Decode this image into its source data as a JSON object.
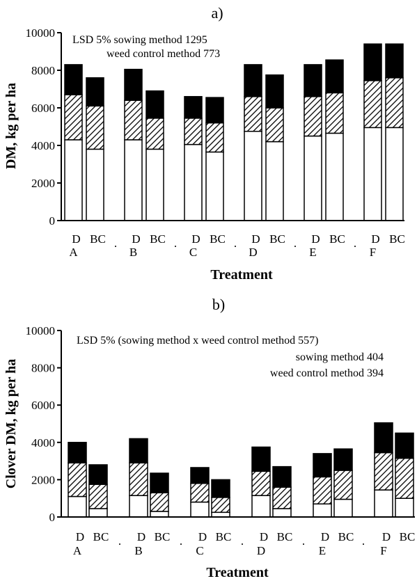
{
  "chart_data": [
    {
      "type": "bar",
      "stacked": true,
      "panel_label": "a)",
      "title": "",
      "ylabel": "DM, kg per ha",
      "xlabel": "Treatment",
      "ylim": [
        0,
        10000
      ],
      "yticks": [
        "0",
        "2000",
        "4000",
        "6000",
        "8000",
        "10000"
      ],
      "groups": [
        "A",
        "B",
        "C",
        "D",
        "E",
        "F"
      ],
      "sub_labels": [
        "D",
        "BC"
      ],
      "separator": ".",
      "annotations": [
        "LSD 5% sowing method 1295",
        "weed control method 773"
      ],
      "segment_fills": [
        "#ffffff",
        "hatch",
        "#000000"
      ],
      "bars": [
        [
          4300,
          2400,
          1600
        ],
        [
          3800,
          2300,
          1500
        ],
        [
          4300,
          2100,
          1650
        ],
        [
          3800,
          1650,
          1450
        ],
        [
          4050,
          1400,
          1150
        ],
        [
          3650,
          1550,
          1350
        ],
        [
          4750,
          1850,
          1700
        ],
        [
          4200,
          1800,
          1750
        ],
        [
          4500,
          2100,
          1700
        ],
        [
          4650,
          2150,
          1750
        ],
        [
          4950,
          2500,
          1950
        ],
        [
          4950,
          2650,
          1800
        ]
      ]
    },
    {
      "type": "bar",
      "stacked": true,
      "panel_label": "b)",
      "title": "",
      "ylabel": "Clover DM, kg per ha",
      "xlabel": "Treatment",
      "ylim": [
        0,
        10000
      ],
      "yticks": [
        "0",
        "2000",
        "4000",
        "6000",
        "8000",
        "10000"
      ],
      "groups": [
        "A",
        "B",
        "C",
        "D",
        "E",
        "F"
      ],
      "sub_labels": [
        "D",
        "BC"
      ],
      "separator": ".",
      "annotations": [
        "LSD 5% (sowing method x weed control method 557)",
        "sowing method 404",
        "weed control method 394"
      ],
      "segment_fills": [
        "#ffffff",
        "hatch",
        "#000000"
      ],
      "bars": [
        [
          1100,
          1800,
          1100
        ],
        [
          450,
          1300,
          1050
        ],
        [
          1150,
          1750,
          1300
        ],
        [
          300,
          1000,
          1050
        ],
        [
          800,
          1000,
          850
        ],
        [
          250,
          800,
          950
        ],
        [
          1150,
          1300,
          1300
        ],
        [
          450,
          1150,
          1100
        ],
        [
          700,
          1450,
          1250
        ],
        [
          950,
          1550,
          1150
        ],
        [
          1450,
          2000,
          1600
        ],
        [
          1000,
          2150,
          1350
        ]
      ]
    }
  ]
}
